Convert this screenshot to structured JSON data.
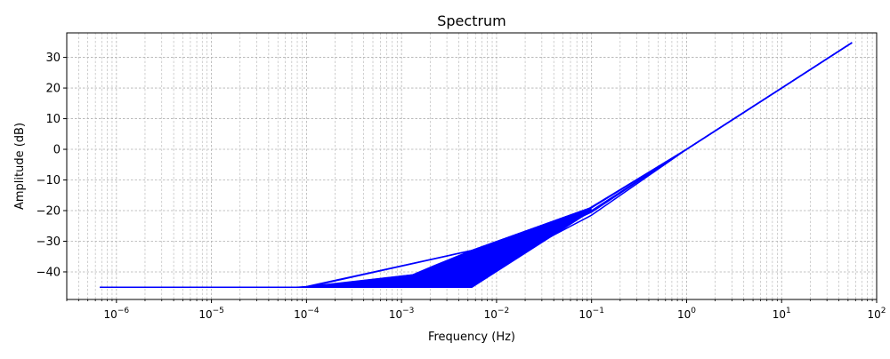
{
  "chart_data": {
    "type": "line",
    "title": "Spectrum",
    "xlabel": "Frequency (Hz)",
    "ylabel": "Amplitude (dB)",
    "x_scale": "log",
    "xlim": [
      3e-07,
      100
    ],
    "ylim": [
      -49,
      38
    ],
    "x_ticks": [
      {
        "value": 1e-06,
        "base": "10",
        "exp": "−6"
      },
      {
        "value": 1e-05,
        "base": "10",
        "exp": "−5"
      },
      {
        "value": 0.0001,
        "base": "10",
        "exp": "−4"
      },
      {
        "value": 0.001,
        "base": "10",
        "exp": "−3"
      },
      {
        "value": 0.01,
        "base": "10",
        "exp": "−2"
      },
      {
        "value": 0.1,
        "base": "10",
        "exp": "−1"
      },
      {
        "value": 1,
        "base": "10",
        "exp": "0"
      },
      {
        "value": 10,
        "base": "10",
        "exp": "1"
      },
      {
        "value": 100,
        "base": "10",
        "exp": "2"
      }
    ],
    "y_ticks": [
      {
        "value": 30,
        "label": "30"
      },
      {
        "value": 20,
        "label": "20"
      },
      {
        "value": 10,
        "label": "10"
      },
      {
        "value": 0,
        "label": "0"
      },
      {
        "value": -10,
        "label": "−10"
      },
      {
        "value": -20,
        "label": "−20"
      },
      {
        "value": -30,
        "label": "−30"
      },
      {
        "value": -40,
        "label": "−40"
      }
    ],
    "grid": true,
    "line_color": "#0000ff",
    "series": [
      {
        "x": [
          6.7e-07,
          0.0001,
          0.0055,
          0.1,
          1,
          10,
          55
        ],
        "y": [
          -45,
          -45,
          -33,
          -19,
          0,
          20,
          34.8
        ]
      },
      {
        "x": [
          6.7e-07,
          8e-05,
          0.0001,
          0.0055,
          0.1,
          1,
          10,
          55
        ],
        "y": [
          -45,
          -45,
          -44.8,
          -33,
          -19,
          0,
          20,
          34.8
        ]
      },
      {
        "x": [
          6.7e-07,
          9e-05,
          0.0013,
          0.0022,
          0.0055,
          0.1,
          1,
          10,
          55
        ],
        "y": [
          -45,
          -45,
          -41,
          -38,
          -33,
          -19,
          0,
          20,
          34.8
        ]
      },
      {
        "x": [
          6.7e-07,
          0.0001,
          0.0013,
          0.0055,
          0.08,
          0.1,
          1,
          10,
          55
        ],
        "y": [
          -45,
          -45,
          -41.5,
          -35.5,
          -20.6,
          -18.8,
          0,
          20,
          34.8
        ]
      },
      {
        "x": [
          6.7e-07,
          0.0001,
          0.0013,
          0.0055,
          0.1,
          1,
          10,
          55
        ],
        "y": [
          -45,
          -45,
          -42.3,
          -38.5,
          -20.5,
          0,
          20,
          34.8
        ]
      },
      {
        "x": [
          6.7e-07,
          0.0001,
          0.0013,
          0.0055,
          0.1,
          1,
          10,
          55
        ],
        "y": [
          -45,
          -45,
          -43.2,
          -42,
          -21.5,
          0,
          20,
          34.8
        ]
      },
      {
        "x": [
          6.7e-07,
          0.0055,
          0.1,
          1,
          10,
          55
        ],
        "y": [
          -45,
          -45,
          -20,
          0,
          20,
          34.8
        ]
      },
      {
        "x": [
          6.7e-07,
          0.0001,
          0.0013,
          0.0055,
          0.03,
          0.1
        ],
        "y": [
          -45,
          -45,
          -41,
          -35,
          -27,
          -19
        ]
      }
    ]
  }
}
